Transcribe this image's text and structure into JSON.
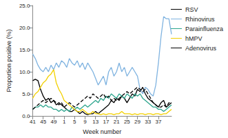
{
  "chart_data": {
    "type": "line",
    "x_label": "Week number",
    "y_label": "Proportion positive (%)",
    "categories": [
      "41",
      null,
      null,
      null,
      "45",
      null,
      null,
      null,
      "49",
      null,
      null,
      null,
      "1",
      null,
      null,
      null,
      "5",
      null,
      null,
      null,
      "9",
      null,
      null,
      null,
      "13",
      null,
      null,
      null,
      "17",
      null,
      null,
      null,
      "21",
      null,
      null,
      null,
      "25",
      null,
      null,
      null,
      "29",
      null,
      null,
      null,
      "33",
      null,
      null,
      null,
      "37",
      null,
      null,
      null,
      null,
      null
    ],
    "ylim": [
      0,
      25
    ],
    "yticks": [
      {
        "value": 0,
        "label": "0.0"
      },
      {
        "value": 5,
        "label": "5.0"
      },
      {
        "value": 10,
        "label": "10.0"
      },
      {
        "value": 15,
        "label": "15.0"
      },
      {
        "value": 20,
        "label": "20.0"
      },
      {
        "value": 25,
        "label": "25.0"
      }
    ],
    "grid": false,
    "legend": "right",
    "marker": "none",
    "series": [
      {
        "name": "RSV",
        "color": "#000000",
        "line_style": "solid",
        "values": [
          8,
          8.3,
          8,
          6,
          4.5,
          3.5,
          4,
          3,
          3.5,
          2.5,
          3,
          2.5,
          2,
          1.5,
          1,
          1,
          1.5,
          1,
          0.5,
          1,
          0.5,
          0.3,
          0.5,
          0.5,
          1,
          0.5,
          1,
          1.5,
          2,
          2.5,
          3.5,
          3,
          4,
          3.5,
          4.5,
          4,
          3,
          4,
          5,
          4.5,
          6,
          5.5,
          6.5,
          5,
          4,
          3.5,
          3,
          2.5,
          2,
          3,
          3.5,
          2,
          2.5,
          3
        ]
      },
      {
        "name": "Rhinovirus",
        "color": "#7fb3e0",
        "line_style": "solid",
        "values": [
          14,
          13,
          11.5,
          10.5,
          10,
          11,
          10,
          11.5,
          10.5,
          12,
          11,
          12.5,
          12,
          11,
          13,
          12,
          11.5,
          12.5,
          11,
          12,
          10.5,
          12,
          11,
          10,
          8.5,
          7,
          8,
          9,
          7,
          10,
          11,
          9,
          10,
          12,
          10,
          11,
          9,
          10,
          11,
          10,
          9,
          6,
          5,
          6.5,
          6,
          5,
          4.5,
          7,
          12,
          18,
          22.5,
          22,
          22,
          18.5
        ]
      },
      {
        "name": "Parainfluenza",
        "color": "#2ca58d",
        "line_style": "solid",
        "values": [
          1.5,
          2,
          2,
          2.5,
          2,
          2.5,
          2,
          2,
          1.5,
          1.5,
          1,
          1.5,
          1,
          1.5,
          1,
          2,
          1.5,
          2,
          1.5,
          2,
          2.5,
          2,
          2.5,
          3,
          3.5,
          3,
          4,
          3.5,
          4.5,
          4,
          5,
          4.5,
          4,
          5,
          4.5,
          4,
          5,
          4.5,
          4,
          5,
          4.5,
          5,
          4,
          3.5,
          3,
          2.5,
          2,
          2,
          1.5,
          1.5,
          1,
          1.5,
          2,
          2.5
        ]
      },
      {
        "name": "hMPV",
        "color": "#f2d000",
        "line_style": "solid",
        "values": [
          4,
          5,
          5.5,
          6.5,
          7.5,
          8,
          9,
          9.5,
          10.5,
          7.5,
          6,
          5,
          3.5,
          3,
          2.5,
          2,
          1.5,
          1,
          1,
          1.5,
          1,
          0.5,
          0.5,
          1,
          0.5,
          0.5,
          0.3,
          0.5,
          0.3,
          0.5,
          0.5,
          0.3,
          0.5,
          0.5,
          1,
          0.5,
          0.5,
          0.5,
          0.3,
          0.5,
          0.3,
          0.5,
          0.5,
          0.3,
          0.5,
          0.5,
          0.3,
          0.5,
          0.5,
          0.3,
          0.5,
          0.5,
          1,
          1.5
        ]
      },
      {
        "name": "Adenovirus",
        "color": "#000000",
        "line_style": "dashed",
        "values": [
          1.5,
          2,
          2.5,
          3,
          3.5,
          3,
          3.5,
          4,
          3.5,
          3,
          2.5,
          3,
          2,
          2.5,
          3,
          2.5,
          2,
          2.5,
          3,
          3.5,
          4,
          4.5,
          4,
          5,
          4.5,
          4,
          4.5,
          5,
          4,
          4.5,
          3.5,
          4,
          3.5,
          4,
          4.5,
          5,
          5.5,
          5,
          5.5,
          6,
          6.5,
          6,
          5.5,
          6,
          5,
          4,
          3,
          2.5,
          2,
          2,
          2.5,
          2,
          3,
          3
        ]
      }
    ]
  }
}
